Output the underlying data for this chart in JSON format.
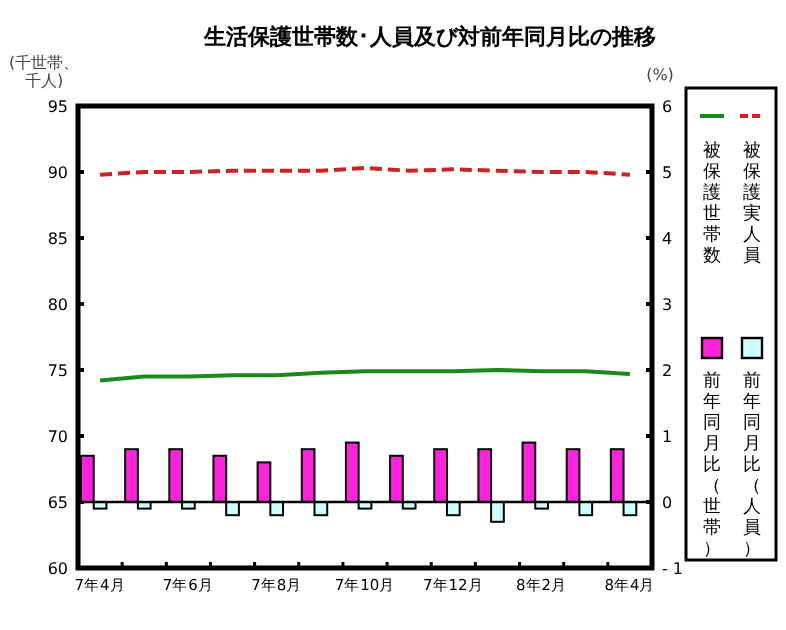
{
  "chart_data": {
    "type": "line",
    "title": "生活保護世帯数･人員及び対前年同月比の推移",
    "ylabel": "(千世帯、千人)",
    "y2label": "(%)",
    "categories": [
      "7年4月",
      null,
      "7年6月",
      null,
      "7年8月",
      null,
      "7年10月",
      null,
      "7年12月",
      null,
      "8年2月",
      null,
      "8年4月"
    ],
    "ylim": [
      60,
      95
    ],
    "yticks": [
      60,
      65,
      70,
      75,
      80,
      85,
      90,
      95
    ],
    "y2lim": [
      -1,
      6
    ],
    "y2ticks": [
      {
        "value": -1,
        "label": "- 1"
      },
      0,
      1,
      2,
      3,
      4,
      5,
      6
    ],
    "legend": "right",
    "grid": false,
    "ref_lines": [
      {
        "axis": "y2",
        "value": 0,
        "color": "#000000"
      }
    ],
    "series": [
      {
        "name": "被保護実人員",
        "line_style": "dashed",
        "color": "#cc2222",
        "values": [
          89.8,
          90.0,
          90.0,
          90.1,
          90.1,
          90.1,
          90.3,
          90.1,
          90.2,
          90.1,
          90.0,
          90.0,
          89.8
        ]
      },
      {
        "name": "被保護世帯数",
        "line_style": "solid",
        "color": "#1a8a1a",
        "values": [
          74.2,
          74.5,
          74.5,
          74.6,
          74.6,
          74.8,
          74.9,
          74.9,
          74.9,
          75.0,
          74.9,
          74.9,
          74.7
        ]
      },
      {
        "name": "前年同月比（人員）",
        "type": "bar",
        "axis": "y2",
        "color": "#ccffff",
        "values": [
          -0.1,
          -0.1,
          -0.1,
          -0.2,
          -0.2,
          -0.2,
          -0.1,
          -0.1,
          -0.2,
          -0.3,
          -0.1,
          -0.2,
          -0.2
        ]
      },
      {
        "name": "前年同月比（世帯）",
        "type": "bar",
        "axis": "y2",
        "color": "#ff22dd",
        "values": [
          0.7,
          0.8,
          0.8,
          0.7,
          0.6,
          0.8,
          0.9,
          0.7,
          0.8,
          0.8,
          0.9,
          0.8,
          0.8
        ]
      }
    ]
  }
}
